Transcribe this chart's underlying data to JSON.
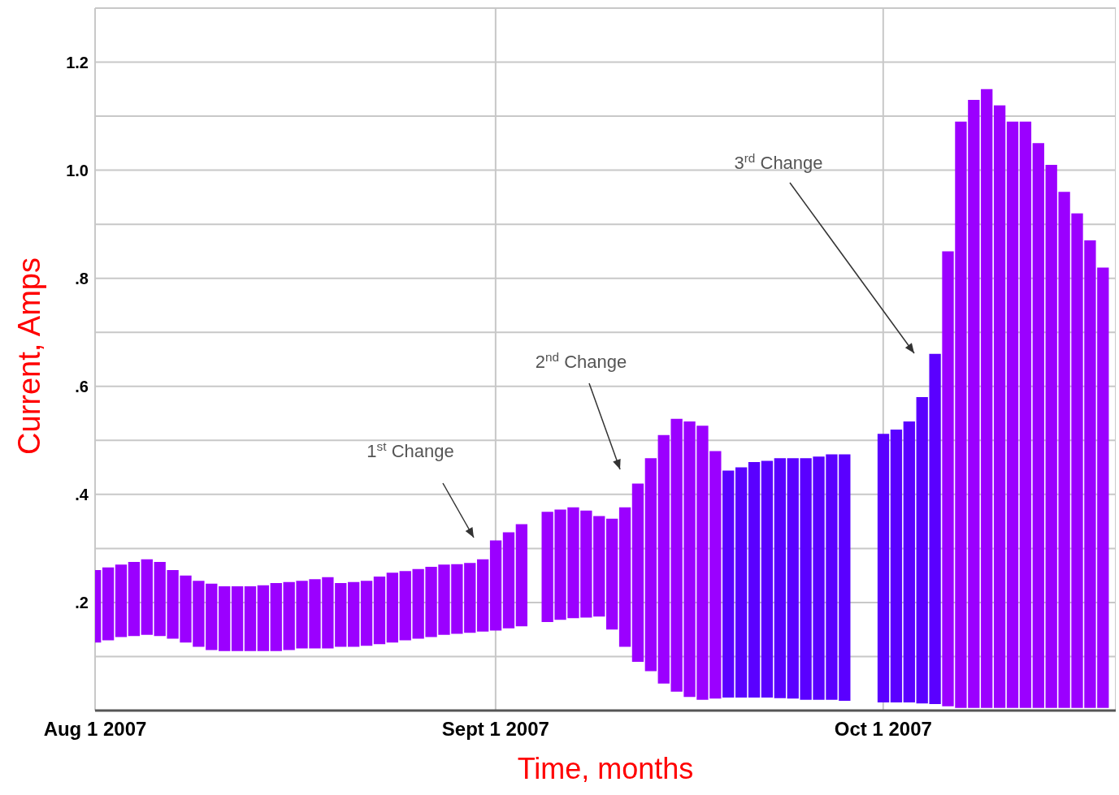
{
  "chart_data": {
    "type": "bar",
    "xlabel": "Time, months",
    "ylabel": "Current, Amps",
    "x": [
      "2007-08-01",
      "2007-08-02",
      "2007-08-03",
      "2007-08-04",
      "2007-08-05",
      "2007-08-06",
      "2007-08-07",
      "2007-08-08",
      "2007-08-09",
      "2007-08-10",
      "2007-08-11",
      "2007-08-12",
      "2007-08-13",
      "2007-08-14",
      "2007-08-15",
      "2007-08-16",
      "2007-08-17",
      "2007-08-18",
      "2007-08-19",
      "2007-08-20",
      "2007-08-21",
      "2007-08-22",
      "2007-08-23",
      "2007-08-24",
      "2007-08-25",
      "2007-08-26",
      "2007-08-27",
      "2007-08-28",
      "2007-08-29",
      "2007-08-30",
      "2007-08-31",
      "2007-09-01",
      "2007-09-02",
      "2007-09-03",
      "2007-09-04",
      "2007-09-05",
      "2007-09-06",
      "2007-09-07",
      "2007-09-08",
      "2007-09-09",
      "2007-09-10",
      "2007-09-11",
      "2007-09-12",
      "2007-09-13",
      "2007-09-14",
      "2007-09-15",
      "2007-09-16",
      "2007-09-17",
      "2007-09-18",
      "2007-09-19",
      "2007-09-20",
      "2007-09-21",
      "2007-09-22",
      "2007-09-23",
      "2007-09-24",
      "2007-09-25",
      "2007-09-26",
      "2007-09-27",
      "2007-09-28",
      "2007-09-29",
      "2007-09-30",
      "2007-10-01",
      "2007-10-02",
      "2007-10-03",
      "2007-10-04",
      "2007-10-05",
      "2007-10-06",
      "2007-10-07",
      "2007-10-08",
      "2007-10-09",
      "2007-10-10",
      "2007-10-11",
      "2007-10-12",
      "2007-10-13",
      "2007-10-14",
      "2007-10-15",
      "2007-10-16",
      "2007-10-17",
      "2007-10-18"
    ],
    "base": [
      0.126,
      0.13,
      0.136,
      0.138,
      0.14,
      0.138,
      0.133,
      0.126,
      0.118,
      0.112,
      0.11,
      0.11,
      0.11,
      0.11,
      0.11,
      0.112,
      0.115,
      0.115,
      0.115,
      0.118,
      0.118,
      0.12,
      0.123,
      0.126,
      0.13,
      0.133,
      0.136,
      0.14,
      0.142,
      0.144,
      0.146,
      0.148,
      0.152,
      0.156,
      null,
      0.164,
      0.168,
      0.171,
      0.172,
      0.174,
      0.15,
      0.118,
      0.09,
      0.073,
      0.05,
      0.035,
      0.025,
      0.02,
      0.022,
      0.024,
      0.024,
      0.024,
      0.024,
      0.023,
      0.022,
      0.02,
      0.02,
      0.02,
      0.018,
      null,
      null,
      0.015,
      0.015,
      0.015,
      0.013,
      0.012,
      0.008,
      0.005,
      0.005,
      0.005,
      0.005,
      0.005,
      0.005,
      0.005,
      0.005,
      0.005,
      0.005,
      0.005,
      0.005
    ],
    "values": [
      0.134,
      0.135,
      0.134,
      0.137,
      0.14,
      0.137,
      0.127,
      0.124,
      0.122,
      0.123,
      0.12,
      0.12,
      0.12,
      0.122,
      0.126,
      0.126,
      0.125,
      0.128,
      0.132,
      0.118,
      0.12,
      0.12,
      0.125,
      0.129,
      0.128,
      0.129,
      0.13,
      0.13,
      0.129,
      0.129,
      0.134,
      0.167,
      0.178,
      0.189,
      null,
      0.204,
      0.204,
      0.205,
      0.198,
      0.186,
      0.205,
      0.258,
      0.33,
      0.394,
      0.46,
      0.505,
      0.51,
      0.507,
      0.458,
      0.42,
      0.426,
      0.436,
      0.438,
      0.444,
      0.445,
      0.447,
      0.45,
      0.454,
      0.456,
      null,
      null,
      0.497,
      0.505,
      0.52,
      0.567,
      0.648,
      0.842,
      1.085,
      1.125,
      1.145,
      1.115,
      1.085,
      1.085,
      1.045,
      1.005,
      0.955,
      0.915,
      0.865,
      0.815
    ],
    "colors": [
      "#9b00ff",
      "#9b00ff",
      "#9b00ff",
      "#9b00ff",
      "#9b00ff",
      "#9b00ff",
      "#9b00ff",
      "#9b00ff",
      "#9b00ff",
      "#9b00ff",
      "#9b00ff",
      "#9b00ff",
      "#9b00ff",
      "#9b00ff",
      "#9b00ff",
      "#9b00ff",
      "#9b00ff",
      "#9b00ff",
      "#9b00ff",
      "#9b00ff",
      "#9b00ff",
      "#9b00ff",
      "#9b00ff",
      "#9b00ff",
      "#9b00ff",
      "#9b00ff",
      "#9b00ff",
      "#9b00ff",
      "#9b00ff",
      "#9b00ff",
      "#9b00ff",
      "#9b00ff",
      "#9b00ff",
      "#9b00ff",
      "#9b00ff",
      "#9b00ff",
      "#9b00ff",
      "#9b00ff",
      "#9b00ff",
      "#9b00ff",
      "#9b00ff",
      "#9b00ff",
      "#9b00ff",
      "#9b00ff",
      "#9b00ff",
      "#9b00ff",
      "#9b00ff",
      "#9b00ff",
      "#9b00ff",
      "#5a00ff",
      "#5a00ff",
      "#5a00ff",
      "#5a00ff",
      "#5a00ff",
      "#5a00ff",
      "#5a00ff",
      "#5a00ff",
      "#5a00ff",
      "#5a00ff",
      "#5a00ff",
      "#5a00ff",
      "#5a00ff",
      "#5a00ff",
      "#5a00ff",
      "#5a00ff",
      "#5a00ff",
      "#9b00ff",
      "#9b00ff",
      "#9b00ff",
      "#9b00ff",
      "#9b00ff",
      "#9b00ff",
      "#9b00ff",
      "#9b00ff",
      "#9b00ff",
      "#9b00ff",
      "#9b00ff",
      "#9b00ff",
      "#9b00ff"
    ],
    "xlim": [
      "2007-08-01",
      "2007-10-19"
    ],
    "xticks": [
      {
        "value": "2007-08-01",
        "label": "Aug 1 2007"
      },
      {
        "value": "2007-09-01",
        "label": "Sept 1 2007"
      },
      {
        "value": "2007-10-01",
        "label": "Oct 1 2007"
      }
    ],
    "ylim": [
      0,
      1.3
    ],
    "yticks": [
      {
        "value": 0.1,
        "label": null
      },
      {
        "value": 0.2,
        "label": ".2"
      },
      {
        "value": 0.3,
        "label": null
      },
      {
        "value": 0.4,
        "label": ".4"
      },
      {
        "value": 0.5,
        "label": null
      },
      {
        "value": 0.6,
        "label": ".6"
      },
      {
        "value": 0.7,
        "label": null
      },
      {
        "value": 0.8,
        "label": ".8"
      },
      {
        "value": 0.9,
        "label": null
      },
      {
        "value": 1.0,
        "label": "1.0"
      },
      {
        "value": 1.1,
        "label": null
      },
      {
        "value": 1.2,
        "label": "1.2"
      }
    ],
    "grid": true,
    "annotations": [
      "1$^{st}$ Change",
      "2$^{nd}$ Change",
      "3$^{rd}$ Change"
    ]
  }
}
